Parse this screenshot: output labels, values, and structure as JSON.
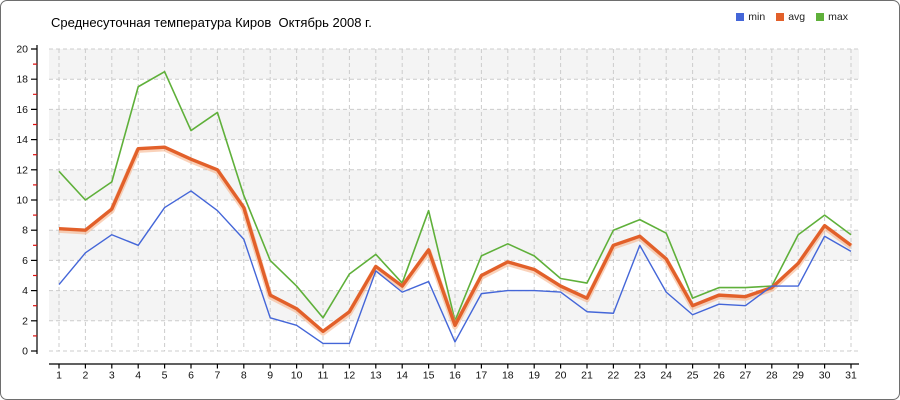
{
  "chart_data": {
    "type": "line",
    "title": "Среднесуточная температура Киров  Октябрь 2008 г.",
    "xlabel": "",
    "ylabel": "",
    "ylim": [
      0,
      20
    ],
    "grid": true,
    "legend_position": "top-right",
    "x_ticks": [
      1,
      2,
      3,
      4,
      5,
      6,
      7,
      8,
      9,
      10,
      11,
      12,
      13,
      14,
      15,
      16,
      17,
      18,
      19,
      20,
      21,
      22,
      23,
      24,
      25,
      26,
      27,
      28,
      29,
      30,
      31
    ],
    "y_ticks": [
      0,
      2,
      4,
      6,
      8,
      10,
      12,
      14,
      16,
      18,
      20
    ],
    "y_minor_tick_color": "#dd1111",
    "grid_color": "#cccccc",
    "band_color": "#f4f4f4",
    "series": [
      {
        "name": "min",
        "color": "#4466d8",
        "values": [
          4.4,
          6.5,
          7.7,
          7.0,
          9.5,
          10.6,
          9.3,
          7.4,
          2.2,
          1.7,
          0.5,
          0.5,
          5.3,
          3.9,
          4.6,
          0.6,
          3.8,
          4.0,
          4.0,
          3.9,
          2.6,
          2.5,
          7.0,
          3.9,
          2.4,
          3.1,
          3.0,
          4.3,
          4.3,
          7.6,
          6.6
        ]
      },
      {
        "name": "avg",
        "color": "#e2602a",
        "halo": "#f5ad82",
        "values": [
          8.1,
          8.0,
          9.4,
          13.4,
          13.5,
          12.7,
          12.0,
          9.5,
          3.7,
          2.8,
          1.3,
          2.6,
          5.6,
          4.3,
          6.7,
          1.7,
          5.0,
          5.9,
          5.4,
          4.3,
          3.5,
          7.0,
          7.6,
          6.1,
          3.0,
          3.7,
          3.6,
          4.2,
          5.8,
          8.3,
          7.0
        ]
      },
      {
        "name": "max",
        "color": "#5fb03a",
        "values": [
          11.9,
          10.0,
          11.2,
          17.5,
          18.5,
          14.6,
          15.8,
          10.3,
          6.0,
          4.3,
          2.2,
          5.1,
          6.4,
          4.5,
          9.3,
          2.0,
          6.3,
          7.1,
          6.3,
          4.8,
          4.5,
          8.0,
          8.7,
          7.8,
          3.5,
          4.2,
          4.2,
          4.3,
          7.7,
          9.0,
          7.7
        ]
      }
    ]
  }
}
